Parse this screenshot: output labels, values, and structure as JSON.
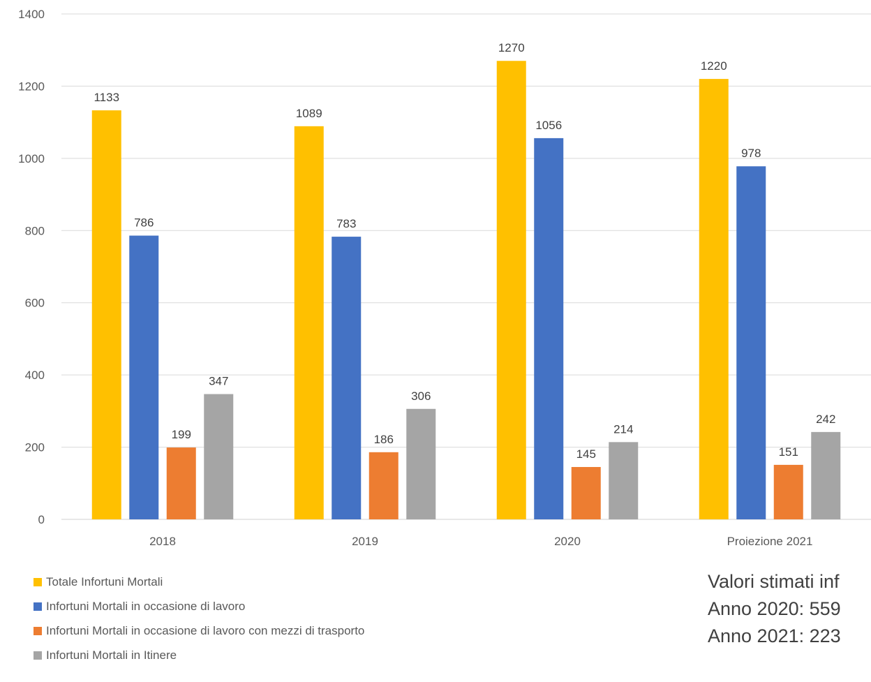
{
  "chart_data": {
    "type": "bar",
    "title": "",
    "xlabel": "",
    "ylabel": "",
    "categories": [
      "2018",
      "2019",
      "2020",
      "Proiezione 2021"
    ],
    "ylim": [
      0,
      1400
    ],
    "yticks": [
      0,
      200,
      400,
      600,
      800,
      1000,
      1200,
      1400
    ],
    "grid": true,
    "legend_position": "bottom-left",
    "data_labels": true,
    "series": [
      {
        "name": "Totale Infortuni Mortali",
        "color": "#FFC000",
        "values": [
          1133,
          1089,
          1270,
          1220
        ]
      },
      {
        "name": "Infortuni Mortali in occasione di lavoro",
        "color": "#4472C4",
        "values": [
          786,
          783,
          1056,
          978
        ]
      },
      {
        "name": "Infortuni Mortali in occasione di lavoro con mezzi di trasporto",
        "color": "#ED7D31",
        "values": [
          199,
          186,
          145,
          151
        ]
      },
      {
        "name": "Infortuni Mortali in Itinere",
        "color": "#A5A5A5",
        "values": [
          347,
          306,
          214,
          242
        ]
      }
    ]
  },
  "legend": {
    "items": [
      "Totale Infortuni Mortali",
      "Infortuni Mortali in occasione di lavoro",
      "Infortuni Mortali in occasione di lavoro con mezzi di trasporto",
      "Infortuni Mortali in Itinere"
    ]
  },
  "note": {
    "line1": "Valori stimati inf",
    "line2": "Anno 2020: 559",
    "line3": "Anno 2021: 223"
  }
}
